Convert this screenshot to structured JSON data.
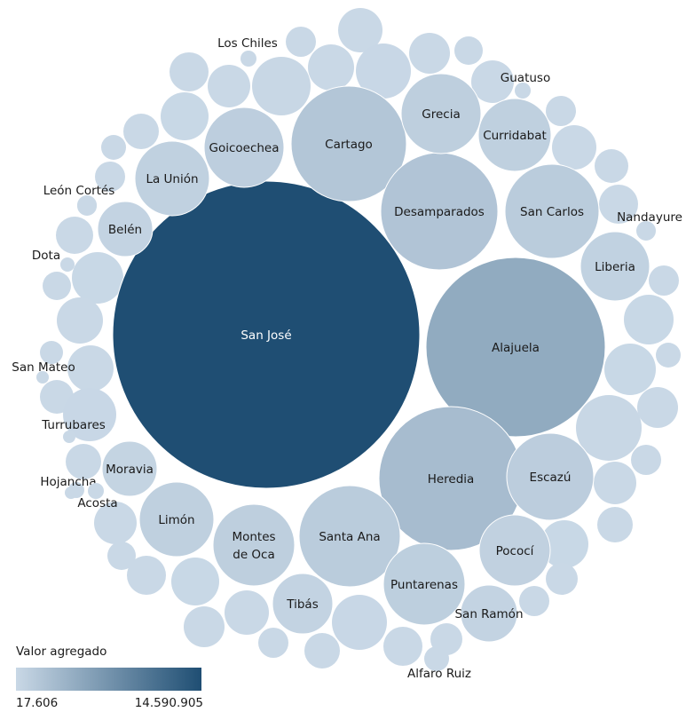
{
  "chart_data": {
    "type": "bubble",
    "legend": {
      "title": "Valor agregado",
      "min_label": "17.606",
      "max_label": "14.590.905",
      "colors": [
        "#c9d8e6",
        "#1f4e73"
      ]
    },
    "labeled_bubbles": [
      {
        "label": "San José",
        "value": 14590905
      },
      {
        "label": "Alajuela",
        "value": 4815000
      },
      {
        "label": "Heredia",
        "value": 2960000
      },
      {
        "label": "Cartago",
        "value": 1940000
      },
      {
        "label": "Desamparados",
        "value": 2100000
      },
      {
        "label": "San Carlos",
        "value": 1330000
      },
      {
        "label": "Escazú",
        "value": 1150000
      },
      {
        "label": "Santa Ana",
        "value": 1330000
      },
      {
        "label": "Puntarenas",
        "value": 1020000
      },
      {
        "label": "Grecia",
        "value": 980000
      },
      {
        "label": "Curridabat",
        "value": 880000
      },
      {
        "label": "Goicoechea",
        "value": 1050000
      },
      {
        "label": "Montes de Oca",
        "value": 1000000
      },
      {
        "label": "Limón",
        "value": 870000
      },
      {
        "label": "La Unión",
        "value": 770000
      },
      {
        "label": "Liberia",
        "value": 690000
      },
      {
        "label": "Pococí",
        "value": 720000
      },
      {
        "label": "Tibás",
        "value": 540000
      },
      {
        "label": "Belén",
        "value": 560000
      },
      {
        "label": "Moravia",
        "value": 480000
      },
      {
        "label": "San Ramón",
        "value": 500000
      },
      {
        "label": "Los Chiles",
        "value": 17606
      },
      {
        "label": "Guatuso",
        "value": 17606
      },
      {
        "label": "Nandayure",
        "value": 30000
      },
      {
        "label": "León Cortés",
        "value": 30000
      },
      {
        "label": "Dota",
        "value": 20000
      },
      {
        "label": "San Mateo",
        "value": 20000
      },
      {
        "label": "Turrubares",
        "value": 17606
      },
      {
        "label": "Hojancha",
        "value": 30000
      },
      {
        "label": "Acosta",
        "value": 30000
      },
      {
        "label": "Alfaro Ruiz",
        "value": 60000
      }
    ]
  }
}
